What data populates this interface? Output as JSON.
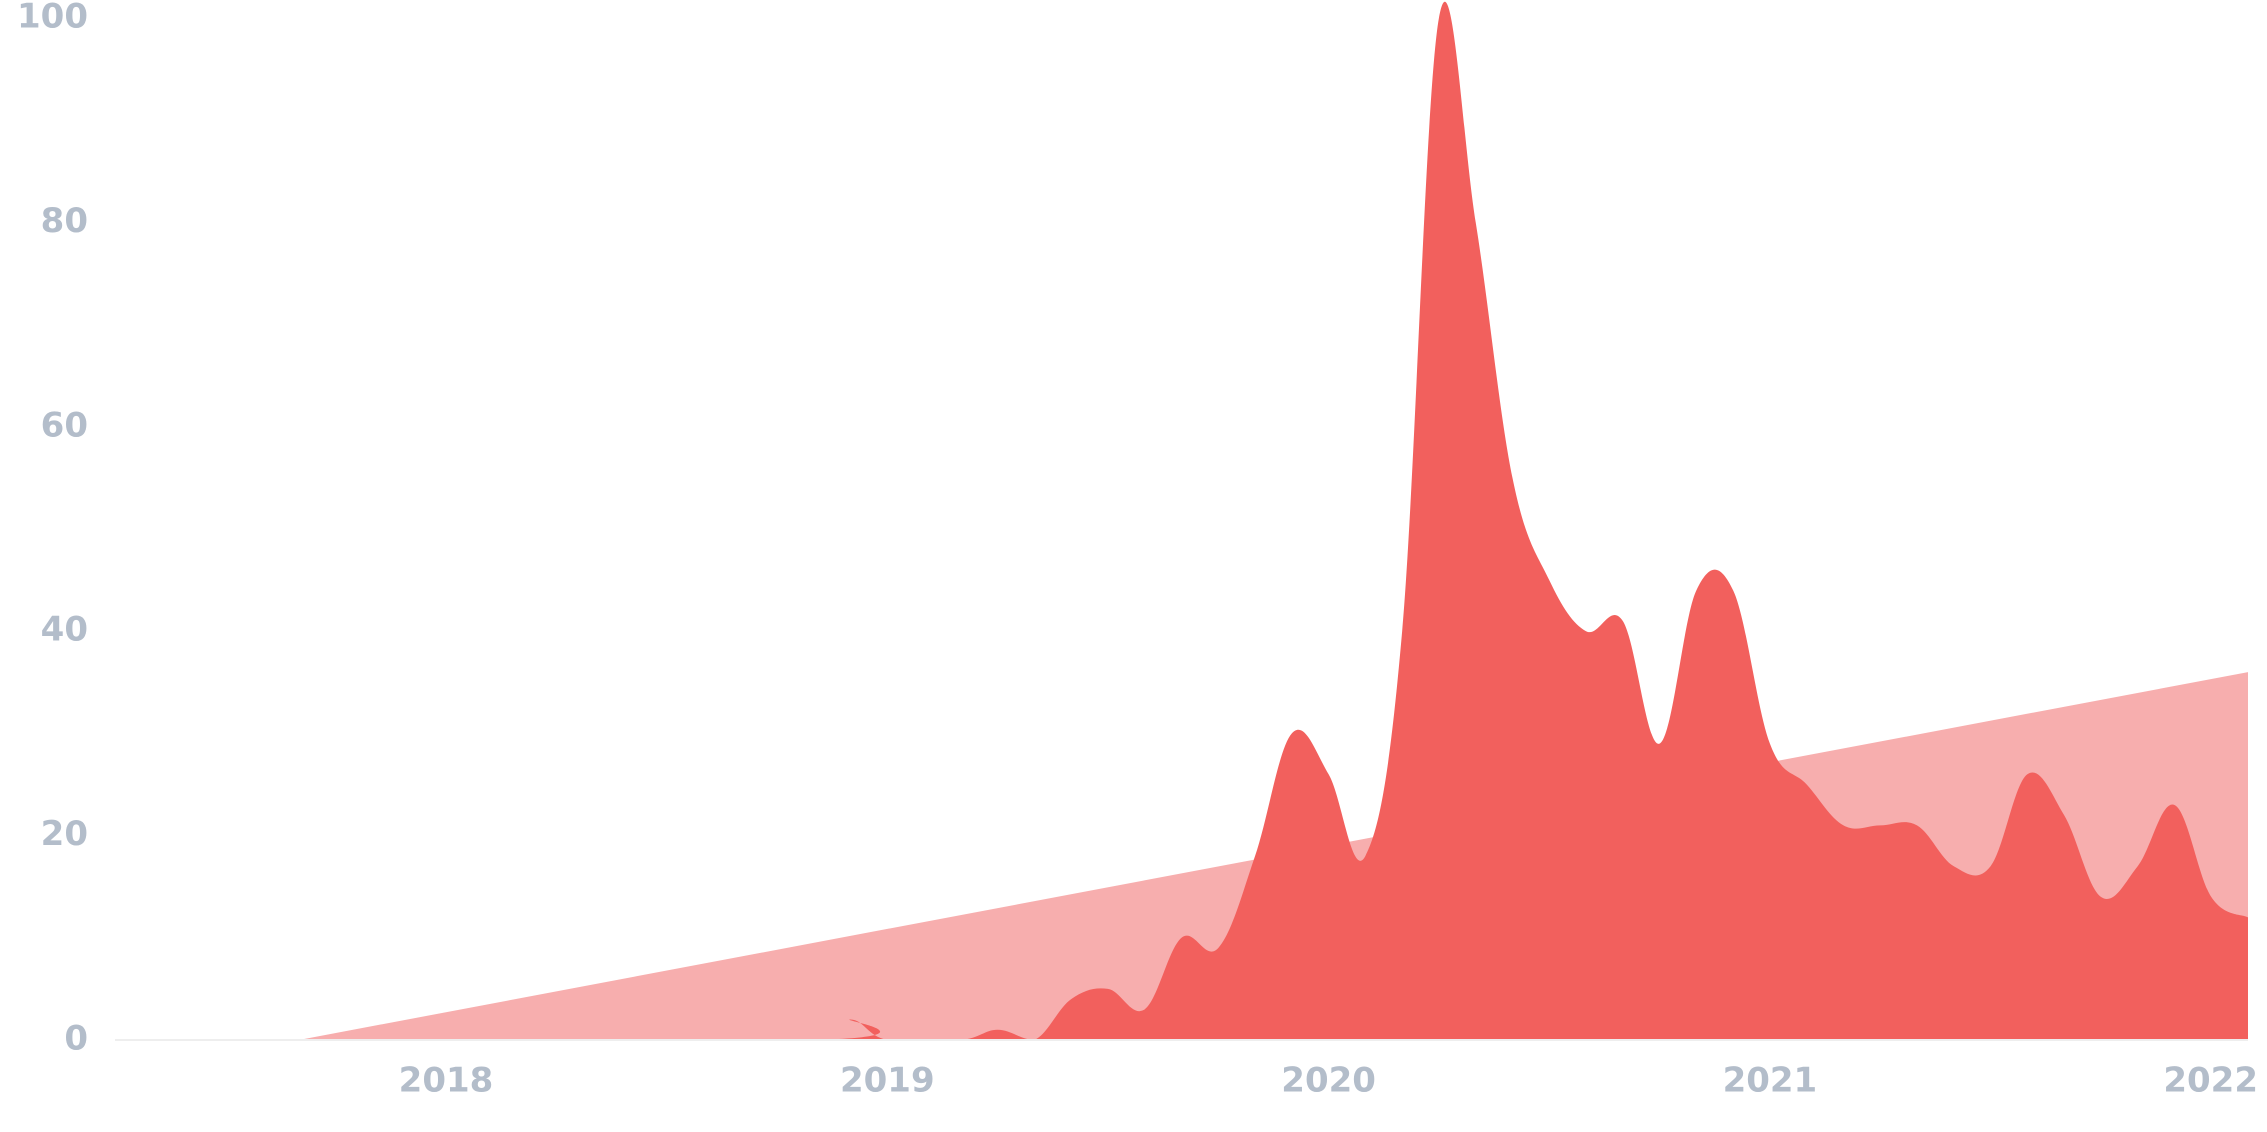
{
  "chart_data": {
    "type": "area",
    "title": "",
    "xlabel": "",
    "ylabel": "",
    "ylim": [
      0,
      100
    ],
    "xlim": [
      "2017-03",
      "2022-01"
    ],
    "y_ticks": [
      "0",
      "20",
      "40",
      "60",
      "80",
      "100"
    ],
    "x_ticks": [
      {
        "label": "2018",
        "x": "2017-12"
      },
      {
        "label": "2019",
        "x": "2018-12"
      },
      {
        "label": "2020",
        "x": "2019-12"
      },
      {
        "label": "2021",
        "x": "2020-12"
      },
      {
        "label": "2022",
        "x": "2022-01"
      }
    ],
    "grid": false,
    "legend": "none",
    "colors": {
      "trend": "#f7aeae",
      "interest": "#f2605d",
      "tick_text": "#b3bdca"
    },
    "series": [
      {
        "role": "trend",
        "points": [
          {
            "x": "2017-03",
            "y": 0
          },
          {
            "x": "2017-08",
            "y": 0
          },
          {
            "x": "2022-01",
            "y": 36
          }
        ]
      },
      {
        "role": "interest",
        "points": [
          {
            "x": "2017-03",
            "y": 0
          },
          {
            "x": "2018-10",
            "y": 0
          },
          {
            "x": "2018-11",
            "y": 2
          },
          {
            "x": "2018-12",
            "y": 0
          },
          {
            "x": "2019-02",
            "y": 0
          },
          {
            "x": "2019-03",
            "y": 1
          },
          {
            "x": "2019-04",
            "y": 0
          },
          {
            "x": "2019-05",
            "y": 4
          },
          {
            "x": "2019-06",
            "y": 5
          },
          {
            "x": "2019-07",
            "y": 3
          },
          {
            "x": "2019-08",
            "y": 10
          },
          {
            "x": "2019-09",
            "y": 9
          },
          {
            "x": "2019-10",
            "y": 18
          },
          {
            "x": "2019-11",
            "y": 30
          },
          {
            "x": "2019-12",
            "y": 26
          },
          {
            "x": "2020-01",
            "y": 18
          },
          {
            "x": "2020-02",
            "y": 40
          },
          {
            "x": "2020-03",
            "y": 100
          },
          {
            "x": "2020-04",
            "y": 80
          },
          {
            "x": "2020-05",
            "y": 55
          },
          {
            "x": "2020-06",
            "y": 45
          },
          {
            "x": "2020-07",
            "y": 40
          },
          {
            "x": "2020-08",
            "y": 41
          },
          {
            "x": "2020-09",
            "y": 29
          },
          {
            "x": "2020-10",
            "y": 44
          },
          {
            "x": "2020-11",
            "y": 44
          },
          {
            "x": "2020-12",
            "y": 29
          },
          {
            "x": "2021-01",
            "y": 25
          },
          {
            "x": "2021-02",
            "y": 21
          },
          {
            "x": "2021-03",
            "y": 21
          },
          {
            "x": "2021-04",
            "y": 21
          },
          {
            "x": "2021-05",
            "y": 17
          },
          {
            "x": "2021-06",
            "y": 17
          },
          {
            "x": "2021-07",
            "y": 26
          },
          {
            "x": "2021-08",
            "y": 22
          },
          {
            "x": "2021-09",
            "y": 14
          },
          {
            "x": "2021-10",
            "y": 17
          },
          {
            "x": "2021-11",
            "y": 23
          },
          {
            "x": "2021-12",
            "y": 14
          },
          {
            "x": "2022-01",
            "y": 12
          }
        ]
      }
    ]
  }
}
